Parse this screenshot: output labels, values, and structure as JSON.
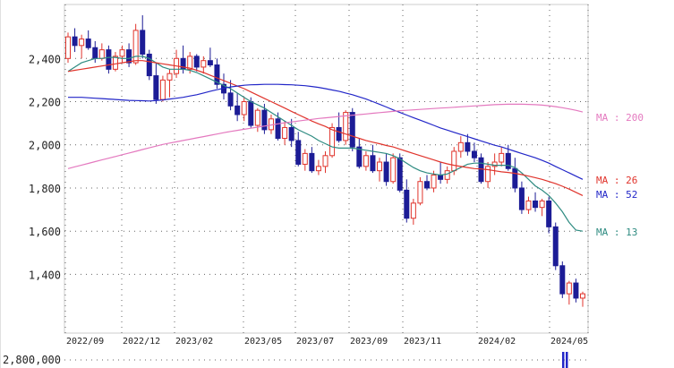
{
  "chart_data": {
    "type": "candlestick",
    "x_labels": [
      "2022/09",
      "2022/12",
      "2023/02",
      "2023/05",
      "2023/07",
      "2023/09",
      "2023/11",
      "2024/02",
      "2024/05"
    ],
    "y_ticks": [
      "2,400",
      "2,200",
      "2,000",
      "1,800",
      "1,600",
      "1,400"
    ],
    "ylim": [
      1240,
      2650
    ],
    "volume_tick": "2,800,000",
    "grid": true,
    "legend_placement": "right",
    "candles_ohlc": [
      [
        2400,
        2520,
        2380,
        2500
      ],
      [
        2500,
        2540,
        2430,
        2460
      ],
      [
        2460,
        2510,
        2400,
        2490
      ],
      [
        2490,
        2530,
        2440,
        2450
      ],
      [
        2450,
        2480,
        2380,
        2400
      ],
      [
        2400,
        2470,
        2390,
        2440
      ],
      [
        2440,
        2460,
        2330,
        2350
      ],
      [
        2350,
        2430,
        2340,
        2410
      ],
      [
        2410,
        2460,
        2380,
        2440
      ],
      [
        2440,
        2470,
        2360,
        2380
      ],
      [
        2380,
        2560,
        2370,
        2530
      ],
      [
        2530,
        2600,
        2400,
        2420
      ],
      [
        2420,
        2440,
        2300,
        2320
      ],
      [
        2320,
        2380,
        2190,
        2210
      ],
      [
        2210,
        2320,
        2200,
        2300
      ],
      [
        2300,
        2350,
        2220,
        2330
      ],
      [
        2330,
        2440,
        2310,
        2400
      ],
      [
        2400,
        2460,
        2330,
        2350
      ],
      [
        2350,
        2430,
        2330,
        2410
      ],
      [
        2410,
        2420,
        2340,
        2360
      ],
      [
        2360,
        2410,
        2330,
        2390
      ],
      [
        2390,
        2450,
        2360,
        2370
      ],
      [
        2370,
        2400,
        2260,
        2280
      ],
      [
        2280,
        2330,
        2210,
        2240
      ],
      [
        2240,
        2300,
        2160,
        2180
      ],
      [
        2180,
        2240,
        2110,
        2140
      ],
      [
        2140,
        2220,
        2110,
        2200
      ],
      [
        2200,
        2220,
        2080,
        2090
      ],
      [
        2090,
        2170,
        2060,
        2160
      ],
      [
        2160,
        2190,
        2050,
        2070
      ],
      [
        2070,
        2140,
        2050,
        2120
      ],
      [
        2120,
        2150,
        2020,
        2030
      ],
      [
        2030,
        2110,
        2000,
        2080
      ],
      [
        2080,
        2120,
        1990,
        2020
      ],
      [
        2020,
        2060,
        1900,
        1910
      ],
      [
        1910,
        1980,
        1880,
        1960
      ],
      [
        1960,
        1990,
        1870,
        1880
      ],
      [
        1880,
        1930,
        1860,
        1900
      ],
      [
        1900,
        1970,
        1870,
        1950
      ],
      [
        1950,
        2100,
        1940,
        2080
      ],
      [
        2080,
        2150,
        2010,
        2020
      ],
      [
        2020,
        2160,
        2000,
        2150
      ],
      [
        2150,
        2170,
        1970,
        1990
      ],
      [
        1990,
        2030,
        1890,
        1900
      ],
      [
        1900,
        1970,
        1880,
        1950
      ],
      [
        1950,
        2000,
        1870,
        1880
      ],
      [
        1880,
        1940,
        1830,
        1920
      ],
      [
        1920,
        1960,
        1810,
        1830
      ],
      [
        1830,
        1960,
        1820,
        1940
      ],
      [
        1940,
        1960,
        1780,
        1790
      ],
      [
        1790,
        1840,
        1640,
        1660
      ],
      [
        1660,
        1750,
        1630,
        1730
      ],
      [
        1730,
        1850,
        1720,
        1830
      ],
      [
        1830,
        1860,
        1790,
        1800
      ],
      [
        1800,
        1880,
        1780,
        1860
      ],
      [
        1860,
        1920,
        1820,
        1840
      ],
      [
        1840,
        1900,
        1820,
        1880
      ],
      [
        1880,
        1990,
        1860,
        1970
      ],
      [
        1970,
        2040,
        1940,
        2010
      ],
      [
        2010,
        2050,
        1950,
        1970
      ],
      [
        1970,
        2010,
        1920,
        1940
      ],
      [
        1940,
        1960,
        1820,
        1830
      ],
      [
        1830,
        1920,
        1800,
        1900
      ],
      [
        1900,
        1960,
        1860,
        1920
      ],
      [
        1920,
        1990,
        1900,
        1960
      ],
      [
        1960,
        2000,
        1880,
        1890
      ],
      [
        1890,
        1940,
        1780,
        1800
      ],
      [
        1800,
        1830,
        1680,
        1700
      ],
      [
        1700,
        1760,
        1680,
        1740
      ],
      [
        1740,
        1780,
        1690,
        1710
      ],
      [
        1710,
        1750,
        1670,
        1740
      ],
      [
        1740,
        1760,
        1590,
        1620
      ],
      [
        1620,
        1640,
        1420,
        1440
      ],
      [
        1440,
        1460,
        1290,
        1310
      ],
      [
        1310,
        1370,
        1260,
        1360
      ],
      [
        1360,
        1380,
        1270,
        1290
      ],
      [
        1290,
        1320,
        1250,
        1310
      ]
    ],
    "series": [
      {
        "name": "MA : 13",
        "color": "#2e8b81",
        "values": [
          2340,
          2360,
          2380,
          2390,
          2400,
          2400,
          2405,
          2405,
          2400,
          2400,
          2410,
          2410,
          2400,
          2380,
          2360,
          2350,
          2350,
          2350,
          2345,
          2335,
          2320,
          2305,
          2290,
          2275,
          2260,
          2240,
          2220,
          2200,
          2185,
          2170,
          2150,
          2130,
          2110,
          2090,
          2070,
          2055,
          2040,
          2020,
          2005,
          1990,
          1985,
          1985,
          1985,
          1980,
          1975,
          1970,
          1965,
          1960,
          1950,
          1935,
          1915,
          1895,
          1880,
          1870,
          1865,
          1860,
          1865,
          1880,
          1895,
          1910,
          1915,
          1915,
          1910,
          1905,
          1905,
          1905,
          1895,
          1870,
          1840,
          1810,
          1790,
          1765,
          1730,
          1690,
          1640,
          1605,
          1600
        ]
      },
      {
        "name": "MA : 26",
        "color": "#e0342c",
        "values": [
          2340,
          2345,
          2350,
          2355,
          2360,
          2365,
          2370,
          2375,
          2380,
          2385,
          2390,
          2390,
          2385,
          2380,
          2375,
          2370,
          2365,
          2360,
          2355,
          2345,
          2335,
          2322,
          2310,
          2297,
          2285,
          2272,
          2260,
          2245,
          2230,
          2215,
          2200,
          2185,
          2170,
          2155,
          2140,
          2125,
          2110,
          2097,
          2085,
          2070,
          2060,
          2050,
          2040,
          2030,
          2020,
          2012,
          2005,
          1997,
          1990,
          1980,
          1970,
          1960,
          1950,
          1940,
          1930,
          1920,
          1912,
          1905,
          1900,
          1895,
          1890,
          1888,
          1885,
          1880,
          1875,
          1872,
          1868,
          1862,
          1855,
          1848,
          1840,
          1830,
          1820,
          1808,
          1795,
          1780,
          1765
        ]
      },
      {
        "name": "MA : 52",
        "color": "#2226c8",
        "values": [
          2220,
          2220,
          2220,
          2218,
          2216,
          2214,
          2212,
          2210,
          2208,
          2206,
          2205,
          2204,
          2203,
          2205,
          2208,
          2212,
          2216,
          2220,
          2226,
          2232,
          2240,
          2248,
          2255,
          2262,
          2268,
          2272,
          2276,
          2278,
          2279,
          2280,
          2280,
          2280,
          2279,
          2278,
          2276,
          2274,
          2270,
          2266,
          2260,
          2254,
          2248,
          2240,
          2232,
          2222,
          2212,
          2200,
          2188,
          2175,
          2162,
          2150,
          2138,
          2126,
          2114,
          2102,
          2090,
          2078,
          2068,
          2058,
          2048,
          2038,
          2028,
          2018,
          2008,
          1998,
          1990,
          1980,
          1970,
          1960,
          1950,
          1940,
          1928,
          1915,
          1900,
          1885,
          1870,
          1855,
          1840
        ]
      },
      {
        "name": "MA : 200",
        "color": "#e479bf",
        "values": [
          1890,
          1898,
          1906,
          1914,
          1922,
          1930,
          1938,
          1946,
          1954,
          1962,
          1970,
          1978,
          1986,
          1994,
          2002,
          2008,
          2014,
          2020,
          2026,
          2032,
          2038,
          2044,
          2050,
          2056,
          2062,
          2067,
          2072,
          2077,
          2082,
          2087,
          2092,
          2097,
          2102,
          2106,
          2110,
          2114,
          2118,
          2122,
          2125,
          2128,
          2131,
          2134,
          2137,
          2140,
          2143,
          2146,
          2149,
          2152,
          2155,
          2158,
          2160,
          2162,
          2164,
          2166,
          2168,
          2170,
          2172,
          2174,
          2176,
          2178,
          2180,
          2182,
          2184,
          2186,
          2187,
          2188,
          2188,
          2188,
          2187,
          2186,
          2184,
          2181,
          2177,
          2172,
          2166,
          2160,
          2152
        ]
      }
    ],
    "colors": {
      "up": "#e0342c",
      "down": "#1c1c96",
      "grid": "#666666",
      "axis_text": "#222222",
      "volume_bar": "#2226c8"
    }
  }
}
